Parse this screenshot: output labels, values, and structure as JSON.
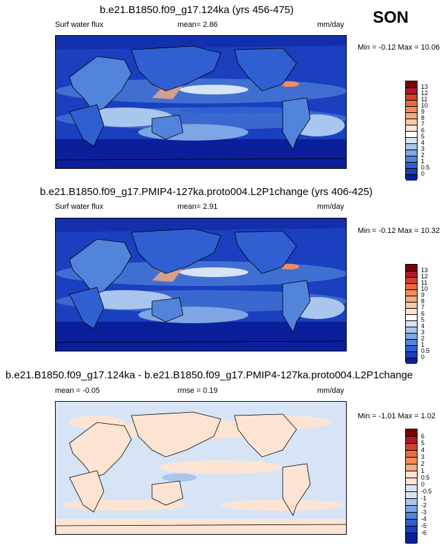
{
  "season": "SON",
  "panels": [
    {
      "title": "b.e21.B1850.f09_g17.124ka (yrs 456-475)",
      "left_label": "Surf water flux",
      "stat_label": "mean=",
      "stat_value": "2.86",
      "units": "mm/day",
      "min_label": "Min =",
      "min_value": "-0.12",
      "max_label": "Max =",
      "max_value": "10.06",
      "colorbar_labels": [
        "13",
        "12",
        "11",
        "10",
        "9",
        "8",
        "7",
        "6",
        "5",
        "4",
        "3",
        "2",
        "1",
        "0.5",
        "0"
      ]
    },
    {
      "title": "b.e21.B1850.f09_g17.PMIP4-127ka.proto004.L2P1change (yrs 406-425)",
      "left_label": "Surf water flux",
      "stat_label": "mean=",
      "stat_value": "2.91",
      "units": "mm/day",
      "min_label": "Min =",
      "min_value": "-0.12",
      "max_label": "Max =",
      "max_value": "10.32",
      "colorbar_labels": [
        "13",
        "12",
        "11",
        "10",
        "9",
        "8",
        "7",
        "6",
        "5",
        "4",
        "3",
        "2",
        "1",
        "0.5",
        "0"
      ]
    },
    {
      "title": "b.e21.B1850.f09_g17.124ka - b.e21.B1850.f09_g17.PMIP4-127ka.proto004.L2P1change",
      "left_label": "mean =",
      "left_value": "-0.05",
      "stat_label": "rmse =",
      "stat_value": "0.19",
      "units": "mm/day",
      "min_label": "Min =",
      "min_value": "-1.01",
      "max_label": "Max =",
      "max_value": "1.02",
      "colorbar_labels": [
        "6",
        "5",
        "4",
        "3",
        "2",
        "1",
        "0.5",
        "0",
        "-0.5",
        "-1",
        "-2",
        "-3",
        "-4",
        "-5",
        "-6"
      ]
    }
  ],
  "colors": {
    "seq": [
      "#7f0000",
      "#b2182b",
      "#d6402a",
      "#ef6a3c",
      "#f48c5a",
      "#f6aa7e",
      "#f9c9a7",
      "#fde4d2",
      "#ffffff",
      "#d6e4f6",
      "#a9c6ee",
      "#7ea6e4",
      "#5184da",
      "#2f5fd0",
      "#1a3fbf",
      "#0b1f9a"
    ],
    "diff": [
      "#7f0000",
      "#b2182b",
      "#d6402a",
      "#ef6a3c",
      "#f48c5a",
      "#f6aa7e",
      "#fde4d2",
      "#fde4d2",
      "#d6e4f6",
      "#d6e4f6",
      "#a9c6ee",
      "#7ea6e4",
      "#5184da",
      "#2f5fd0",
      "#1a3fbf",
      "#0b1f9a"
    ]
  }
}
